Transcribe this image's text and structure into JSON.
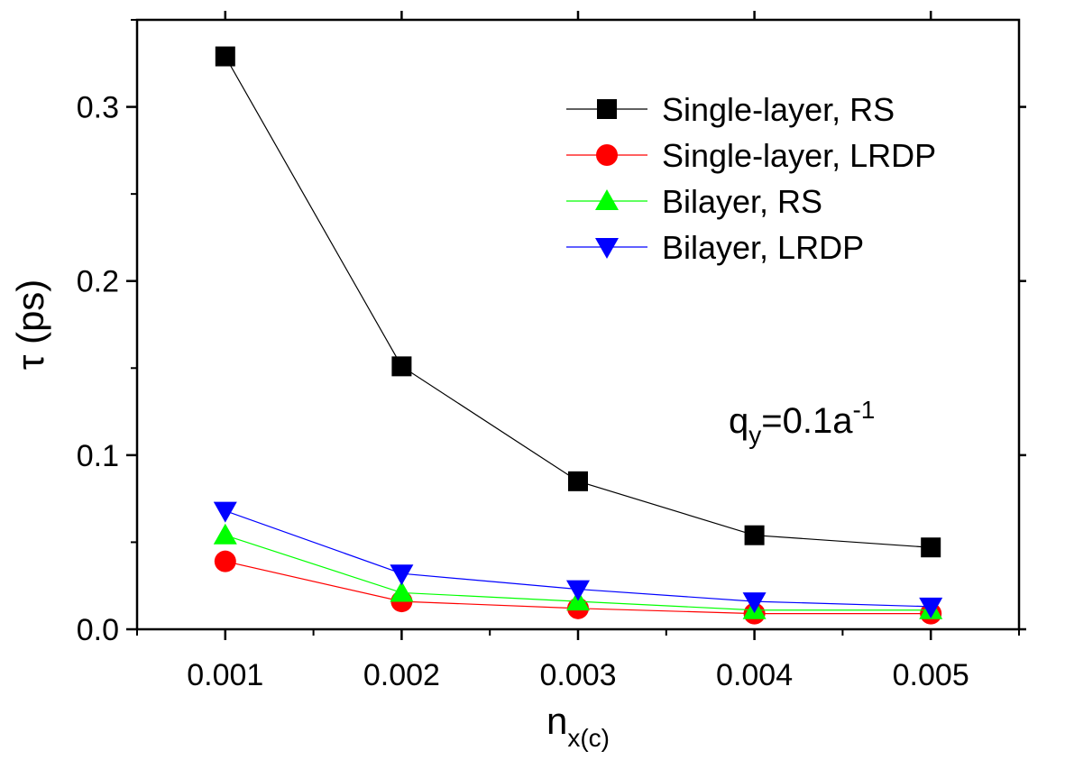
{
  "chart_data": {
    "type": "line",
    "title": "",
    "xlabel_main": "n",
    "xlabel_sub": "x(c)",
    "ylabel_symbol": "τ",
    "ylabel_unit": " (ps)",
    "x": [
      0.001,
      0.002,
      0.003,
      0.004,
      0.005
    ],
    "x_tick_labels": [
      "0.001",
      "0.002",
      "0.003",
      "0.004",
      "0.005"
    ],
    "xlim": [
      0.0005,
      0.0055
    ],
    "ylim": [
      0,
      0.35
    ],
    "y_ticks": [
      0.0,
      0.1,
      0.2,
      0.3
    ],
    "y_tick_labels": [
      "0.0",
      "0.1",
      "0.2",
      "0.3"
    ],
    "grid": false,
    "legend_position": "top-right",
    "series": [
      {
        "name": "Single-layer, RS",
        "color": "#000000",
        "marker": "square",
        "values": [
          0.329,
          0.151,
          0.085,
          0.054,
          0.047
        ]
      },
      {
        "name": "Single-layer, LRDP",
        "color": "#ff0000",
        "marker": "circle",
        "values": [
          0.039,
          0.016,
          0.012,
          0.009,
          0.009
        ]
      },
      {
        "name": "Bilayer, RS",
        "color": "#00ff00",
        "marker": "triangle-up",
        "values": [
          0.054,
          0.021,
          0.016,
          0.011,
          0.011
        ]
      },
      {
        "name": "Bilayer, LRDP",
        "color": "#0000ff",
        "marker": "triangle-down",
        "values": [
          0.068,
          0.032,
          0.023,
          0.016,
          0.013
        ]
      }
    ],
    "annotation": {
      "base": "q",
      "sub": "y",
      "mid": "=0.1a",
      "sup": "-1"
    }
  }
}
